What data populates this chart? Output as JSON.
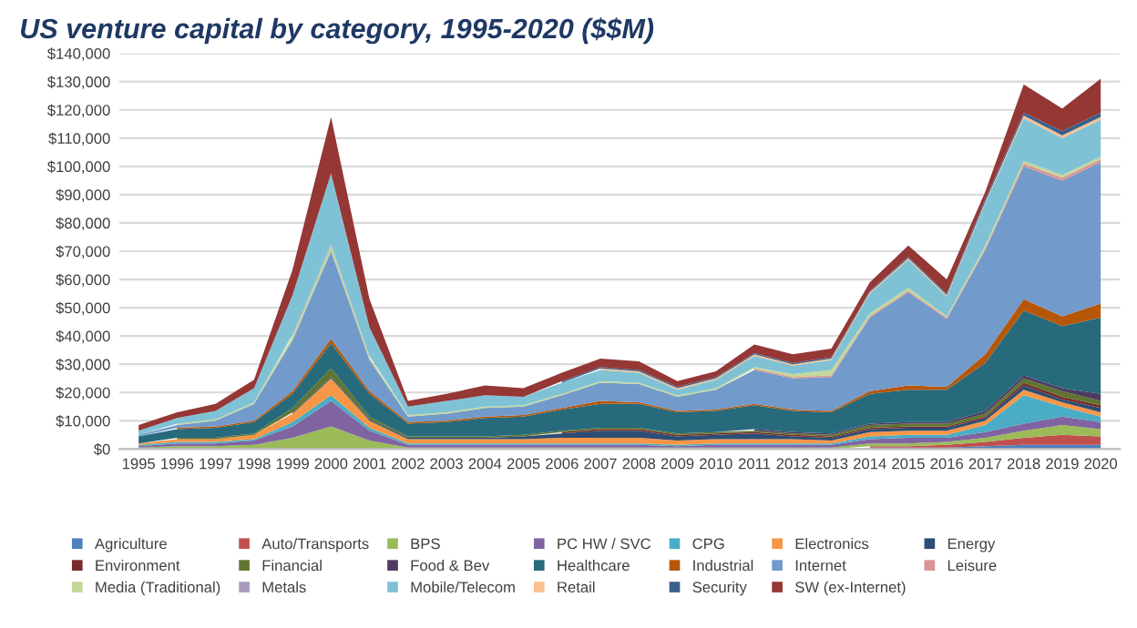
{
  "chart_data": {
    "type": "area",
    "stacked": true,
    "title": "US venture capital by category, 1995-2020 ($$M)",
    "categories": [
      "1995",
      "1996",
      "1997",
      "1998",
      "1999",
      "2000",
      "2001",
      "2002",
      "2003",
      "2004",
      "2005",
      "2006",
      "2007",
      "2008",
      "2009",
      "2010",
      "2011",
      "2012",
      "2013",
      "2014",
      "2015",
      "2016",
      "2017",
      "2018",
      "2019",
      "2020"
    ],
    "ylim": [
      0,
      140000
    ],
    "yticks": [
      {
        "value": 0,
        "label": "$0"
      },
      {
        "value": 10000,
        "label": "$10,000"
      },
      {
        "value": 20000,
        "label": "$20,000"
      },
      {
        "value": 30000,
        "label": "$30,000"
      },
      {
        "value": 40000,
        "label": "$40,000"
      },
      {
        "value": 50000,
        "label": "$50,000"
      },
      {
        "value": 60000,
        "label": "$60,000"
      },
      {
        "value": 70000,
        "label": "$70,000"
      },
      {
        "value": 80000,
        "label": "$80,000"
      },
      {
        "value": 90000,
        "label": "$90,000"
      },
      {
        "value": 100000,
        "label": "$100,000"
      },
      {
        "value": 110000,
        "label": "$110,000"
      },
      {
        "value": 120000,
        "label": "$120,000"
      },
      {
        "value": 130000,
        "label": "$130,000"
      },
      {
        "value": 140000,
        "label": "$140,000"
      }
    ],
    "grid": "y",
    "legend": "bottom",
    "series": [
      {
        "name": "Agriculture",
        "color": "#4f81bd",
        "values": [
          null,
          null,
          null,
          null,
          null,
          null,
          null,
          null,
          null,
          null,
          null,
          null,
          null,
          null,
          null,
          null,
          null,
          null,
          null,
          500,
          500,
          500,
          1000,
          1500,
          1500,
          1500
        ]
      },
      {
        "name": "Auto/Transports",
        "color": "#c0504d",
        "values": [
          null,
          null,
          null,
          null,
          null,
          null,
          null,
          null,
          null,
          null,
          null,
          null,
          null,
          null,
          null,
          null,
          null,
          null,
          null,
          500,
          500,
          1000,
          1500,
          2500,
          3500,
          3000
        ]
      },
      {
        "name": "BPS",
        "color": "#9bbb59",
        "values": [
          500,
          1000,
          1000,
          1500,
          4000,
          8000,
          3000,
          500,
          500,
          500,
          500,
          500,
          500,
          500,
          500,
          500,
          500,
          500,
          500,
          1000,
          1000,
          1000,
          1500,
          2500,
          3500,
          2500
        ]
      },
      {
        "name": "PC HW / SVC",
        "color": "#8064a2",
        "values": [
          500,
          1000,
          1000,
          1500,
          4000,
          9000,
          3500,
          1000,
          1000,
          1000,
          1000,
          1000,
          1000,
          1000,
          500,
          1000,
          1000,
          1000,
          1000,
          1500,
          2000,
          1500,
          2000,
          2500,
          3000,
          2500
        ]
      },
      {
        "name": "CPG",
        "color": "#4bacc6",
        "values": [
          500,
          500,
          500,
          500,
          1500,
          2000,
          1000,
          500,
          500,
          500,
          500,
          500,
          500,
          500,
          500,
          500,
          500,
          500,
          500,
          1000,
          1000,
          1000,
          2500,
          10000,
          3500,
          2000
        ]
      },
      {
        "name": "Electronics",
        "color": "#f79646",
        "values": [
          500,
          1000,
          1000,
          1500,
          3000,
          6000,
          2500,
          1500,
          1500,
          1500,
          1500,
          2000,
          2000,
          2000,
          1500,
          1500,
          1500,
          1500,
          1000,
          1500,
          1500,
          1500,
          1500,
          2000,
          1500,
          1500
        ]
      },
      {
        "name": "Energy",
        "color": "#2c4d75",
        "values": [
          null,
          null,
          null,
          null,
          500,
          500,
          500,
          500,
          500,
          500,
          1000,
          1500,
          2500,
          2500,
          1500,
          1500,
          2000,
          1000,
          1000,
          1000,
          1000,
          1000,
          1000,
          1500,
          1000,
          1500
        ]
      },
      {
        "name": "Environment",
        "color": "#772c2a",
        "values": [
          null,
          null,
          null,
          null,
          null,
          null,
          null,
          null,
          null,
          null,
          null,
          500,
          500,
          500,
          500,
          500,
          500,
          500,
          500,
          500,
          500,
          500,
          500,
          1000,
          1000,
          1000
        ]
      },
      {
        "name": "Financial",
        "color": "#5f7530",
        "values": [
          null,
          500,
          500,
          500,
          1500,
          3000,
          1000,
          500,
          500,
          500,
          500,
          500,
          500,
          500,
          500,
          500,
          500,
          500,
          500,
          1000,
          1000,
          1000,
          1000,
          1500,
          2000,
          1500
        ]
      },
      {
        "name": "Food & Bev",
        "color": "#4d3b62",
        "values": [
          null,
          null,
          null,
          null,
          null,
          null,
          null,
          null,
          null,
          null,
          null,
          null,
          null,
          null,
          null,
          null,
          500,
          500,
          500,
          500,
          500,
          500,
          1000,
          1000,
          1000,
          2500
        ]
      },
      {
        "name": "Healthcare",
        "color": "#276a7c",
        "values": [
          2500,
          3000,
          3500,
          4000,
          5000,
          9000,
          8000,
          4500,
          5000,
          6500,
          6500,
          7500,
          8500,
          8500,
          7500,
          7500,
          8500,
          7500,
          7500,
          10500,
          11500,
          11500,
          17000,
          23000,
          22000,
          27000
        ]
      },
      {
        "name": "Industrial",
        "color": "#b65708",
        "values": [
          null,
          500,
          500,
          500,
          1000,
          1500,
          1000,
          500,
          500,
          500,
          500,
          500,
          1000,
          500,
          500,
          500,
          500,
          500,
          500,
          1000,
          1500,
          1000,
          3000,
          4000,
          3500,
          5000
        ]
      },
      {
        "name": "Internet",
        "color": "#729aca",
        "values": [
          500,
          1000,
          2000,
          6000,
          18000,
          31000,
          11000,
          2000,
          2500,
          3000,
          3000,
          4500,
          6500,
          6500,
          5000,
          7000,
          12000,
          11000,
          12000,
          26000,
          33000,
          24000,
          37000,
          47000,
          48000,
          50000
        ]
      },
      {
        "name": "Leisure",
        "color": "#d99694",
        "values": [
          null,
          null,
          null,
          null,
          null,
          null,
          null,
          null,
          null,
          null,
          null,
          null,
          null,
          null,
          null,
          null,
          500,
          500,
          500,
          500,
          500,
          500,
          500,
          1000,
          1000,
          1000
        ]
      },
      {
        "name": "Media (Traditional)",
        "color": "#c3d69b",
        "values": [
          null,
          500,
          500,
          500,
          1500,
          2000,
          1000,
          500,
          500,
          500,
          500,
          500,
          500,
          500,
          500,
          500,
          500,
          1000,
          2000,
          1000,
          1000,
          500,
          1000,
          1000,
          1000,
          1000
        ]
      },
      {
        "name": "Metals",
        "color": "#a99bbd",
        "values": [
          null,
          null,
          null,
          null,
          500,
          500,
          500,
          null,
          null,
          null,
          null,
          null,
          null,
          null,
          null,
          null,
          null,
          null,
          null,
          null,
          null,
          null,
          null,
          null,
          null,
          null
        ]
      },
      {
        "name": "Mobile/Telecom",
        "color": "#7fc2d6",
        "values": [
          1500,
          2000,
          3000,
          5000,
          14000,
          25000,
          10000,
          3000,
          4000,
          4000,
          3000,
          4000,
          4000,
          3500,
          2000,
          3000,
          4000,
          3000,
          3500,
          7000,
          10000,
          7000,
          15000,
          15000,
          13000,
          13000
        ]
      },
      {
        "name": "Retail",
        "color": "#fac090",
        "values": [
          null,
          null,
          null,
          null,
          null,
          null,
          null,
          null,
          null,
          null,
          null,
          null,
          500,
          500,
          500,
          500,
          500,
          500,
          500,
          500,
          500,
          500,
          500,
          1000,
          1000,
          1000
        ]
      },
      {
        "name": "Security",
        "color": "#3a5f8b",
        "values": [
          null,
          null,
          null,
          null,
          null,
          null,
          null,
          null,
          null,
          null,
          null,
          500,
          500,
          500,
          500,
          500,
          500,
          500,
          500,
          500,
          500,
          500,
          1000,
          1000,
          1500,
          1500
        ]
      },
      {
        "name": "SW (ex-Internet)",
        "color": "#953735",
        "values": [
          2000,
          2000,
          2500,
          3000,
          9000,
          20000,
          10000,
          2000,
          2500,
          3500,
          3000,
          3000,
          3000,
          3000,
          2000,
          2000,
          3000,
          3000,
          3000,
          3000,
          4000,
          5000,
          2500,
          10000,
          8000,
          12000
        ]
      }
    ]
  }
}
